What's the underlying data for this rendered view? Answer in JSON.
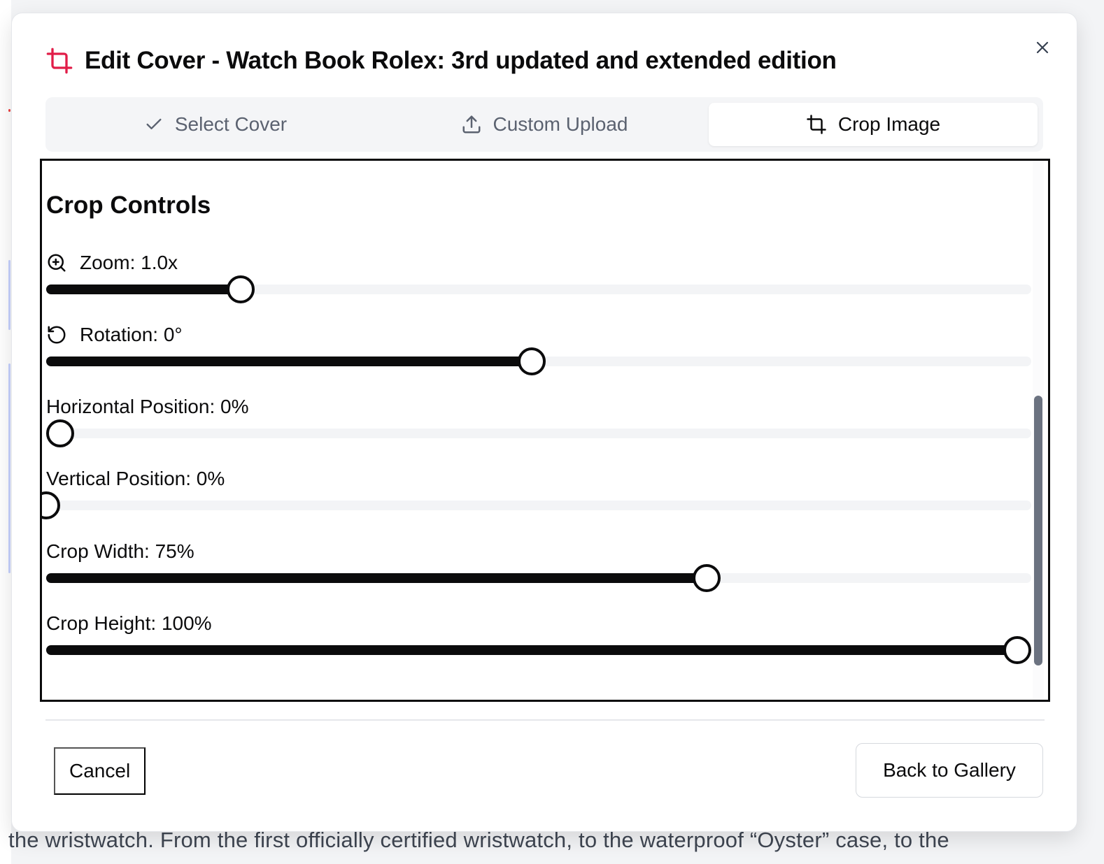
{
  "dialog": {
    "title": "Edit Cover - Watch Book Rolex: 3rd updated and extended edition",
    "accent_color": "#e11d48"
  },
  "tabs": [
    {
      "label": "Select Cover",
      "icon": "check-icon",
      "active": false
    },
    {
      "label": "Custom Upload",
      "icon": "upload-icon",
      "active": false
    },
    {
      "label": "Crop Image",
      "icon": "crop-icon",
      "active": true
    }
  ],
  "crop_controls": {
    "title": "Crop Controls",
    "controls": [
      {
        "label": "Zoom: 1.0x",
        "icon": "zoom-in-icon",
        "level": 0.2
      },
      {
        "label": "Rotation: 0°",
        "icon": "rotate-icon",
        "level": 0.5
      },
      {
        "label": "Horizontal Position: 0%",
        "level": 0.0
      },
      {
        "label": "Vertical Position: 0%",
        "level": 0.0
      },
      {
        "label": "Crop Width: 75%",
        "level": 0.68
      },
      {
        "label": "Crop Height: 100%",
        "level": 1.0
      }
    ]
  },
  "footer": {
    "cancel_label": "Cancel",
    "back_label": "Back to Gallery"
  },
  "background": {
    "text": "the wristwatch. From the first officially certified wristwatch, to the waterproof “Oyster” case, to the"
  }
}
